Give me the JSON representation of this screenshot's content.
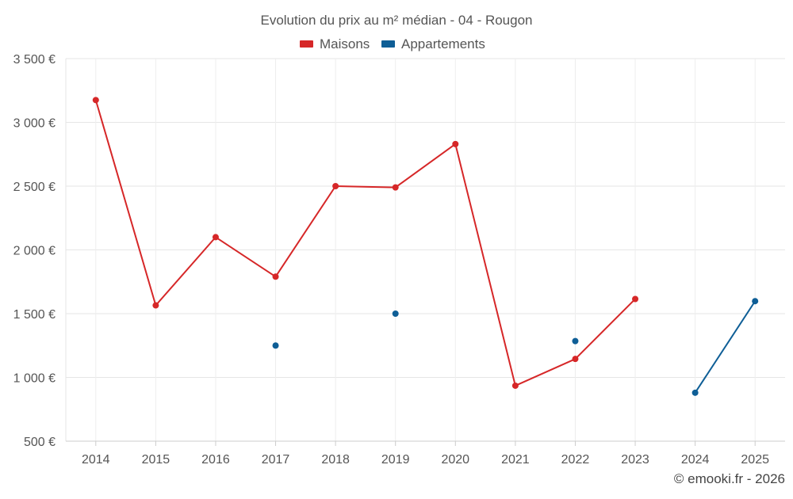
{
  "chart_data": {
    "type": "line",
    "title": "Evolution du prix au m² médian - 04 - Rougon",
    "categories": [
      "2014",
      "2015",
      "2016",
      "2017",
      "2018",
      "2019",
      "2020",
      "2021",
      "2022",
      "2023",
      "2024",
      "2025"
    ],
    "series": [
      {
        "name": "Maisons",
        "color": "#d62728",
        "values": [
          3175,
          1565,
          2100,
          1790,
          2500,
          2490,
          2830,
          935,
          1145,
          1615,
          null,
          null
        ]
      },
      {
        "name": "Appartements",
        "color": "#0e5e96",
        "values": [
          null,
          null,
          null,
          1250,
          null,
          1500,
          null,
          null,
          1285,
          null,
          880,
          1598
        ]
      }
    ],
    "ylim": [
      500,
      3500
    ],
    "yticks": [
      500,
      1000,
      1500,
      2000,
      2500,
      3000,
      3500
    ],
    "ytick_labels": [
      "500 €",
      "1 000 €",
      "1 500 €",
      "2 000 €",
      "2 500 €",
      "3 000 €",
      "3 500 €"
    ],
    "xlabel": "",
    "ylabel": "",
    "grid": true,
    "legend_position": "top-center"
  },
  "credit": "© emooki.fr - 2026"
}
